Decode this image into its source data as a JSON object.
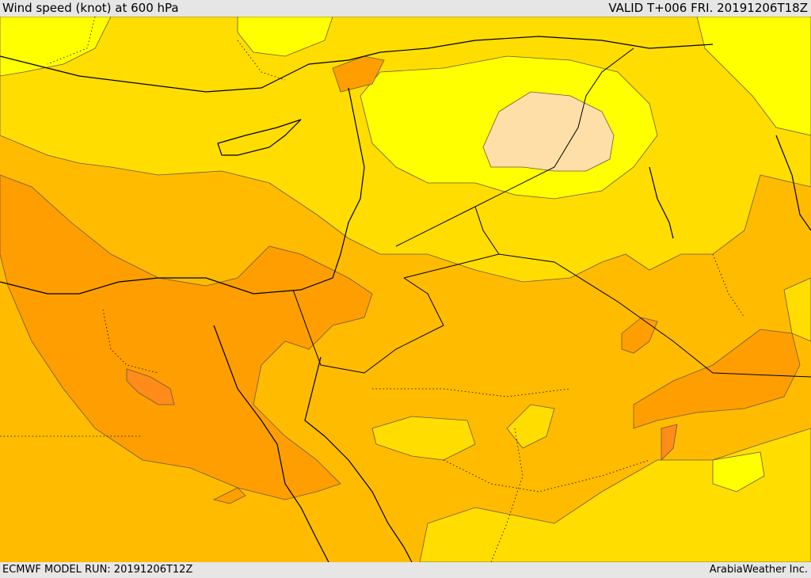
{
  "header": {
    "title": "Wind speed (knot) at 600 hPa",
    "valid": "VALID T+006 FRI. 20191206T18Z"
  },
  "footer": {
    "model_run": "ECMWF MODEL RUN: 20191206T12Z",
    "credit": "ArabiaWeather Inc."
  },
  "colors": {
    "level_1": "#ffff00",
    "level_2": "#ffdd00",
    "level_3": "#ffbb00",
    "level_4": "#ff9e00",
    "level_5": "#ff8c1a",
    "calm": "#ffdfa8",
    "border": "#000000",
    "contour": "#6a5a40"
  }
}
